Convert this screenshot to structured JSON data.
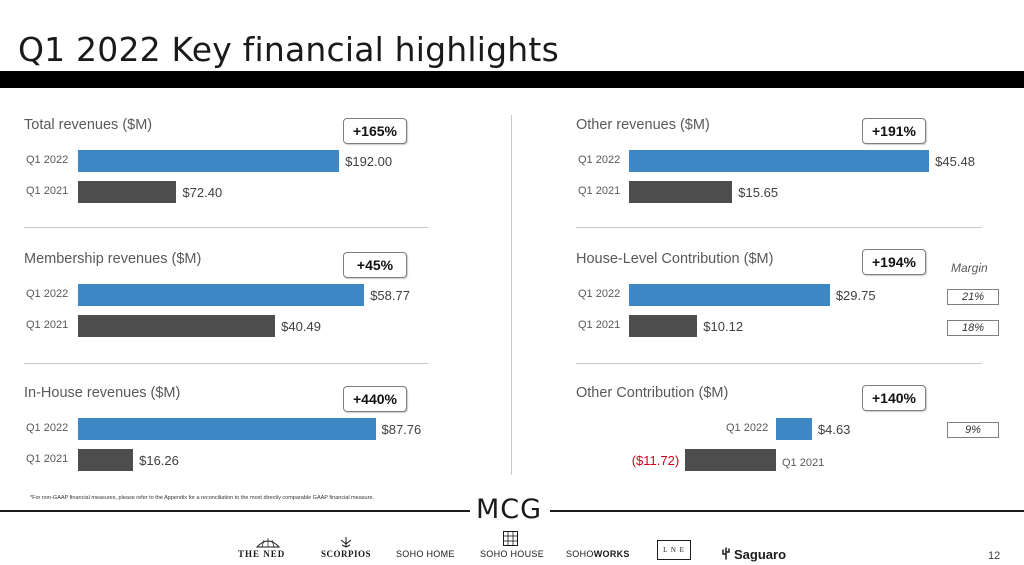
{
  "title": "Q1 2022 Key financial highlights",
  "panels": [
    {
      "title": "Total revenues ($M)",
      "badge": "+165%",
      "rows": [
        {
          "label": "Q1 2022",
          "value": 192.0,
          "display": "$192.00"
        },
        {
          "label": "Q1 2021",
          "value": 72.4,
          "display": "$72.40"
        }
      ]
    },
    {
      "title": "Membership revenues ($M)",
      "badge": "+45%",
      "rows": [
        {
          "label": "Q1 2022",
          "value": 58.77,
          "display": "$58.77"
        },
        {
          "label": "Q1 2021",
          "value": 40.49,
          "display": "$40.49"
        }
      ]
    },
    {
      "title": "In-House revenues ($M)",
      "badge": "+440%",
      "rows": [
        {
          "label": "Q1 2022",
          "value": 87.76,
          "display": "$87.76"
        },
        {
          "label": "Q1 2021",
          "value": 16.26,
          "display": "$16.26"
        }
      ]
    },
    {
      "title": "Other revenues ($M)",
      "badge": "+191%",
      "rows": [
        {
          "label": "Q1 2022",
          "value": 45.48,
          "display": "$45.48"
        },
        {
          "label": "Q1 2021",
          "value": 15.65,
          "display": "$15.65"
        }
      ]
    },
    {
      "title": "House-Level Contribution ($M)",
      "badge": "+194%",
      "rows": [
        {
          "label": "Q1 2022",
          "value": 29.75,
          "display": "$29.75",
          "margin": "21%"
        },
        {
          "label": "Q1 2021",
          "value": 10.12,
          "display": "$10.12",
          "margin": "18%"
        }
      ]
    },
    {
      "title": "Other Contribution ($M)",
      "badge": "+140%",
      "rows": [
        {
          "label": "Q1 2022",
          "value": 4.63,
          "display": "$4.63",
          "margin": "9%"
        },
        {
          "label": "Q1 2021",
          "value": -11.72,
          "display": "($11.72)"
        }
      ]
    }
  ],
  "margin_header": "Margin",
  "footnote": "*For non-GAAP financial measures, please refer to the Appendix for a reconciliation to the most directly comparable GAAP financial measure.",
  "logo": "MCG",
  "brands": [
    "THE NED",
    "SCORPIOS",
    "SOHO HOME",
    "SOHO HOUSE",
    "SOHO",
    "WORKS",
    "L N E",
    "Saguaro"
  ],
  "page_number": "12",
  "colors": {
    "q1_2022": "#3d88c4",
    "q1_2021": "#4d4d4d",
    "negative": "#d0021b"
  }
}
